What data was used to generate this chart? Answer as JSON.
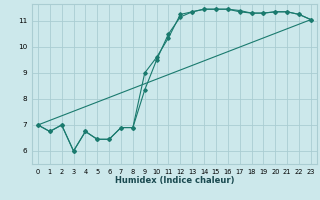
{
  "bg_color": "#cce8eb",
  "grid_color": "#aacdd2",
  "line_color": "#1a7a6e",
  "xlabel": "Humidex (Indice chaleur)",
  "xlim": [
    -0.5,
    23.5
  ],
  "ylim": [
    5.5,
    11.65
  ],
  "xticks": [
    0,
    1,
    2,
    3,
    4,
    5,
    6,
    7,
    8,
    9,
    10,
    11,
    12,
    13,
    14,
    15,
    16,
    17,
    18,
    19,
    20,
    21,
    22,
    23
  ],
  "yticks": [
    6,
    7,
    8,
    9,
    10,
    11
  ],
  "line1_x": [
    0,
    1,
    2,
    3,
    4,
    5,
    6,
    7,
    8,
    9,
    10,
    11,
    12,
    13,
    14,
    15,
    16,
    17,
    18,
    19,
    20,
    21,
    22,
    23
  ],
  "line1_y": [
    7.0,
    6.75,
    7.0,
    6.0,
    6.75,
    6.45,
    6.45,
    6.9,
    6.9,
    9.0,
    9.6,
    10.35,
    11.25,
    11.35,
    11.45,
    11.45,
    11.45,
    11.4,
    11.3,
    11.3,
    11.35,
    11.35,
    11.25,
    11.05
  ],
  "line2_x": [
    0,
    1,
    2,
    3,
    4,
    5,
    6,
    7,
    8,
    9,
    10,
    11,
    12,
    13,
    14,
    15,
    16,
    17,
    18,
    19,
    20,
    21,
    22,
    23
  ],
  "line2_y": [
    7.0,
    6.75,
    7.0,
    6.0,
    6.75,
    6.45,
    6.45,
    6.9,
    6.9,
    8.35,
    9.5,
    10.5,
    11.15,
    11.35,
    11.45,
    11.45,
    11.45,
    11.35,
    11.3,
    11.3,
    11.35,
    11.35,
    11.25,
    11.05
  ],
  "line3_x": [
    0,
    23
  ],
  "line3_y": [
    7.0,
    11.05
  ]
}
